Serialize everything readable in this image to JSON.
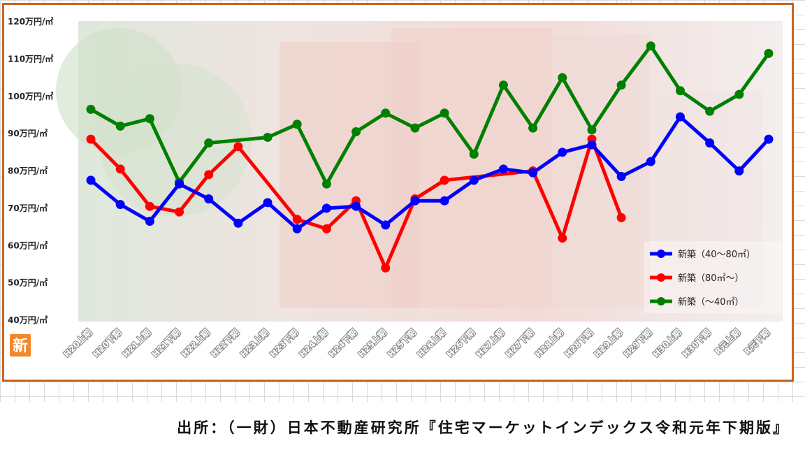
{
  "source": "出所：（一財）日本不動産研究所『住宅マーケットインデックス令和元年下期版』",
  "badge": "新",
  "chart_data": {
    "type": "line",
    "categories": [
      "H20上期",
      "H20下期",
      "H21上期",
      "H21下期",
      "H22上期",
      "H22下期",
      "H23上期",
      "H23下期",
      "H24上期",
      "H24下期",
      "H25上期",
      "H25下期",
      "H26上期",
      "H26下期",
      "H27上期",
      "H27下期",
      "H28上期",
      "H28下期",
      "H29上期",
      "H29下期",
      "H30上期",
      "H30下期",
      "R元上期",
      "R元下期"
    ],
    "y_tick_labels": [
      "40万円/㎡",
      "50万円/㎡",
      "60万円/㎡",
      "70万円/㎡",
      "80万円/㎡",
      "90万円/㎡",
      "100万円/㎡",
      "110万円/㎡",
      "120万円/㎡"
    ],
    "ylim": [
      40,
      120
    ],
    "grid": false,
    "legend_position": "bottom-right",
    "series": [
      {
        "name": "新築（40～80㎡）",
        "color": "#0000ff",
        "values": [
          77.5,
          71,
          66.5,
          76.5,
          72.5,
          66,
          71.5,
          64.5,
          70,
          70.5,
          65.5,
          72,
          72,
          77.5,
          80.5,
          79.5,
          85,
          87,
          78.5,
          82.5,
          94.5,
          87.5,
          80,
          88.5
        ]
      },
      {
        "name": "新築（80㎡～）",
        "color": "#ff0000",
        "values": [
          88.5,
          80.5,
          70.5,
          69,
          79,
          86.5,
          null,
          67,
          64.5,
          72,
          54,
          72.5,
          77.5,
          null,
          null,
          80,
          62,
          88.5,
          67.5,
          null,
          null,
          null,
          null,
          null
        ]
      },
      {
        "name": "新築（～40㎡）",
        "color": "#008000",
        "values": [
          96.5,
          92,
          94,
          77,
          87.5,
          null,
          89,
          92.5,
          76.5,
          90.5,
          95.5,
          91.5,
          95.5,
          84.5,
          103,
          91.5,
          105,
          91,
          103,
          113.5,
          101.5,
          96,
          100.5,
          111.5
        ]
      }
    ]
  }
}
